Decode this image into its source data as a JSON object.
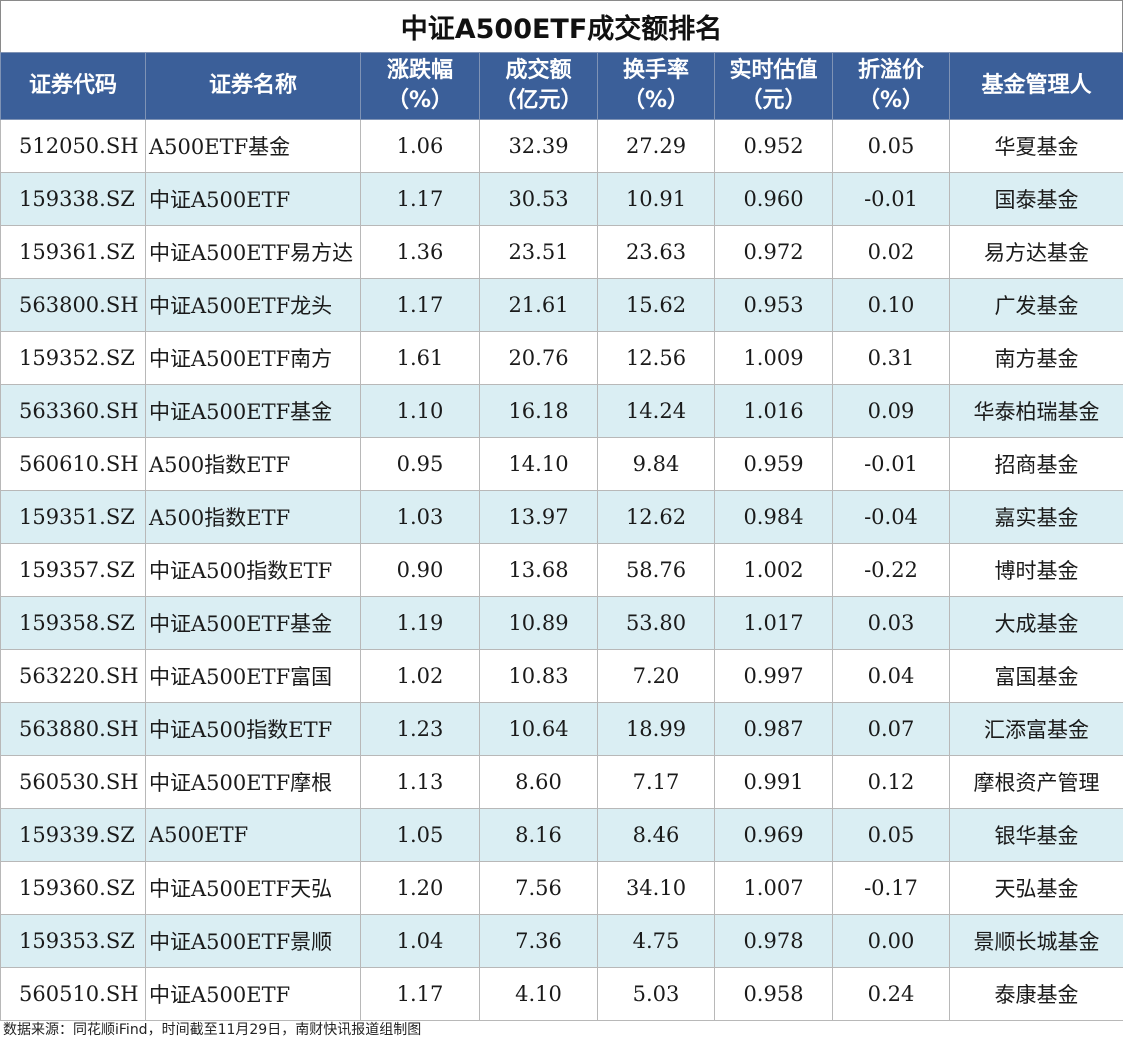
{
  "title": "中证A500ETF成交额排名",
  "headers": [
    {
      "line1": "证券代码",
      "line2": ""
    },
    {
      "line1": "证券名称",
      "line2": ""
    },
    {
      "line1": "涨跌幅",
      "line2": "（%）"
    },
    {
      "line1": "成交额",
      "line2": "（亿元）"
    },
    {
      "line1": "换手率",
      "line2": "（%）"
    },
    {
      "line1": "实时估值",
      "line2": "（元）"
    },
    {
      "line1": "折溢价",
      "line2": "（%）"
    },
    {
      "line1": "基金管理人",
      "line2": ""
    }
  ],
  "rows": [
    {
      "code": "512050.SH",
      "name": "A500ETF基金",
      "change": "1.06",
      "turnover": "32.39",
      "turnover_rate": "27.29",
      "nav": "0.952",
      "premium": "0.05",
      "manager": "华夏基金"
    },
    {
      "code": "159338.SZ",
      "name": "中证A500ETF",
      "change": "1.17",
      "turnover": "30.53",
      "turnover_rate": "10.91",
      "nav": "0.960",
      "premium": "-0.01",
      "manager": "国泰基金"
    },
    {
      "code": "159361.SZ",
      "name": "中证A500ETF易方达",
      "change": "1.36",
      "turnover": "23.51",
      "turnover_rate": "23.63",
      "nav": "0.972",
      "premium": "0.02",
      "manager": "易方达基金"
    },
    {
      "code": "563800.SH",
      "name": "中证A500ETF龙头",
      "change": "1.17",
      "turnover": "21.61",
      "turnover_rate": "15.62",
      "nav": "0.953",
      "premium": "0.10",
      "manager": "广发基金"
    },
    {
      "code": "159352.SZ",
      "name": "中证A500ETF南方",
      "change": "1.61",
      "turnover": "20.76",
      "turnover_rate": "12.56",
      "nav": "1.009",
      "premium": "0.31",
      "manager": "南方基金"
    },
    {
      "code": "563360.SH",
      "name": "中证A500ETF基金",
      "change": "1.10",
      "turnover": "16.18",
      "turnover_rate": "14.24",
      "nav": "1.016",
      "premium": "0.09",
      "manager": "华泰柏瑞基金"
    },
    {
      "code": "560610.SH",
      "name": "A500指数ETF",
      "change": "0.95",
      "turnover": "14.10",
      "turnover_rate": "9.84",
      "nav": "0.959",
      "premium": "-0.01",
      "manager": "招商基金"
    },
    {
      "code": "159351.SZ",
      "name": "A500指数ETF",
      "change": "1.03",
      "turnover": "13.97",
      "turnover_rate": "12.62",
      "nav": "0.984",
      "premium": "-0.04",
      "manager": "嘉实基金"
    },
    {
      "code": "159357.SZ",
      "name": "中证A500指数ETF",
      "change": "0.90",
      "turnover": "13.68",
      "turnover_rate": "58.76",
      "nav": "1.002",
      "premium": "-0.22",
      "manager": "博时基金"
    },
    {
      "code": "159358.SZ",
      "name": "中证A500ETF基金",
      "change": "1.19",
      "turnover": "10.89",
      "turnover_rate": "53.80",
      "nav": "1.017",
      "premium": "0.03",
      "manager": "大成基金"
    },
    {
      "code": "563220.SH",
      "name": "中证A500ETF富国",
      "change": "1.02",
      "turnover": "10.83",
      "turnover_rate": "7.20",
      "nav": "0.997",
      "premium": "0.04",
      "manager": "富国基金"
    },
    {
      "code": "563880.SH",
      "name": "中证A500指数ETF",
      "change": "1.23",
      "turnover": "10.64",
      "turnover_rate": "18.99",
      "nav": "0.987",
      "premium": "0.07",
      "manager": "汇添富基金"
    },
    {
      "code": "560530.SH",
      "name": "中证A500ETF摩根",
      "change": "1.13",
      "turnover": "8.60",
      "turnover_rate": "7.17",
      "nav": "0.991",
      "premium": "0.12",
      "manager": "摩根资产管理"
    },
    {
      "code": "159339.SZ",
      "name": "A500ETF",
      "change": "1.05",
      "turnover": "8.16",
      "turnover_rate": "8.46",
      "nav": "0.969",
      "premium": "0.05",
      "manager": "银华基金"
    },
    {
      "code": "159360.SZ",
      "name": "中证A500ETF天弘",
      "change": "1.20",
      "turnover": "7.56",
      "turnover_rate": "34.10",
      "nav": "1.007",
      "premium": "-0.17",
      "manager": "天弘基金"
    },
    {
      "code": "159353.SZ",
      "name": "中证A500ETF景顺",
      "change": "1.04",
      "turnover": "7.36",
      "turnover_rate": "4.75",
      "nav": "0.978",
      "premium": "0.00",
      "manager": "景顺长城基金"
    },
    {
      "code": "560510.SH",
      "name": "中证A500ETF",
      "change": "1.17",
      "turnover": "4.10",
      "turnover_rate": "5.03",
      "nav": "0.958",
      "premium": "0.24",
      "manager": "泰康基金"
    }
  ],
  "footer": "数据来源：同花顺iFind，时间截至11月29日，南财快讯报道组制图",
  "colors": {
    "header_bg": "#3b5f99",
    "header_text": "#ffffff",
    "alt_row_bg": "#daeef3",
    "row_bg": "#ffffff"
  }
}
